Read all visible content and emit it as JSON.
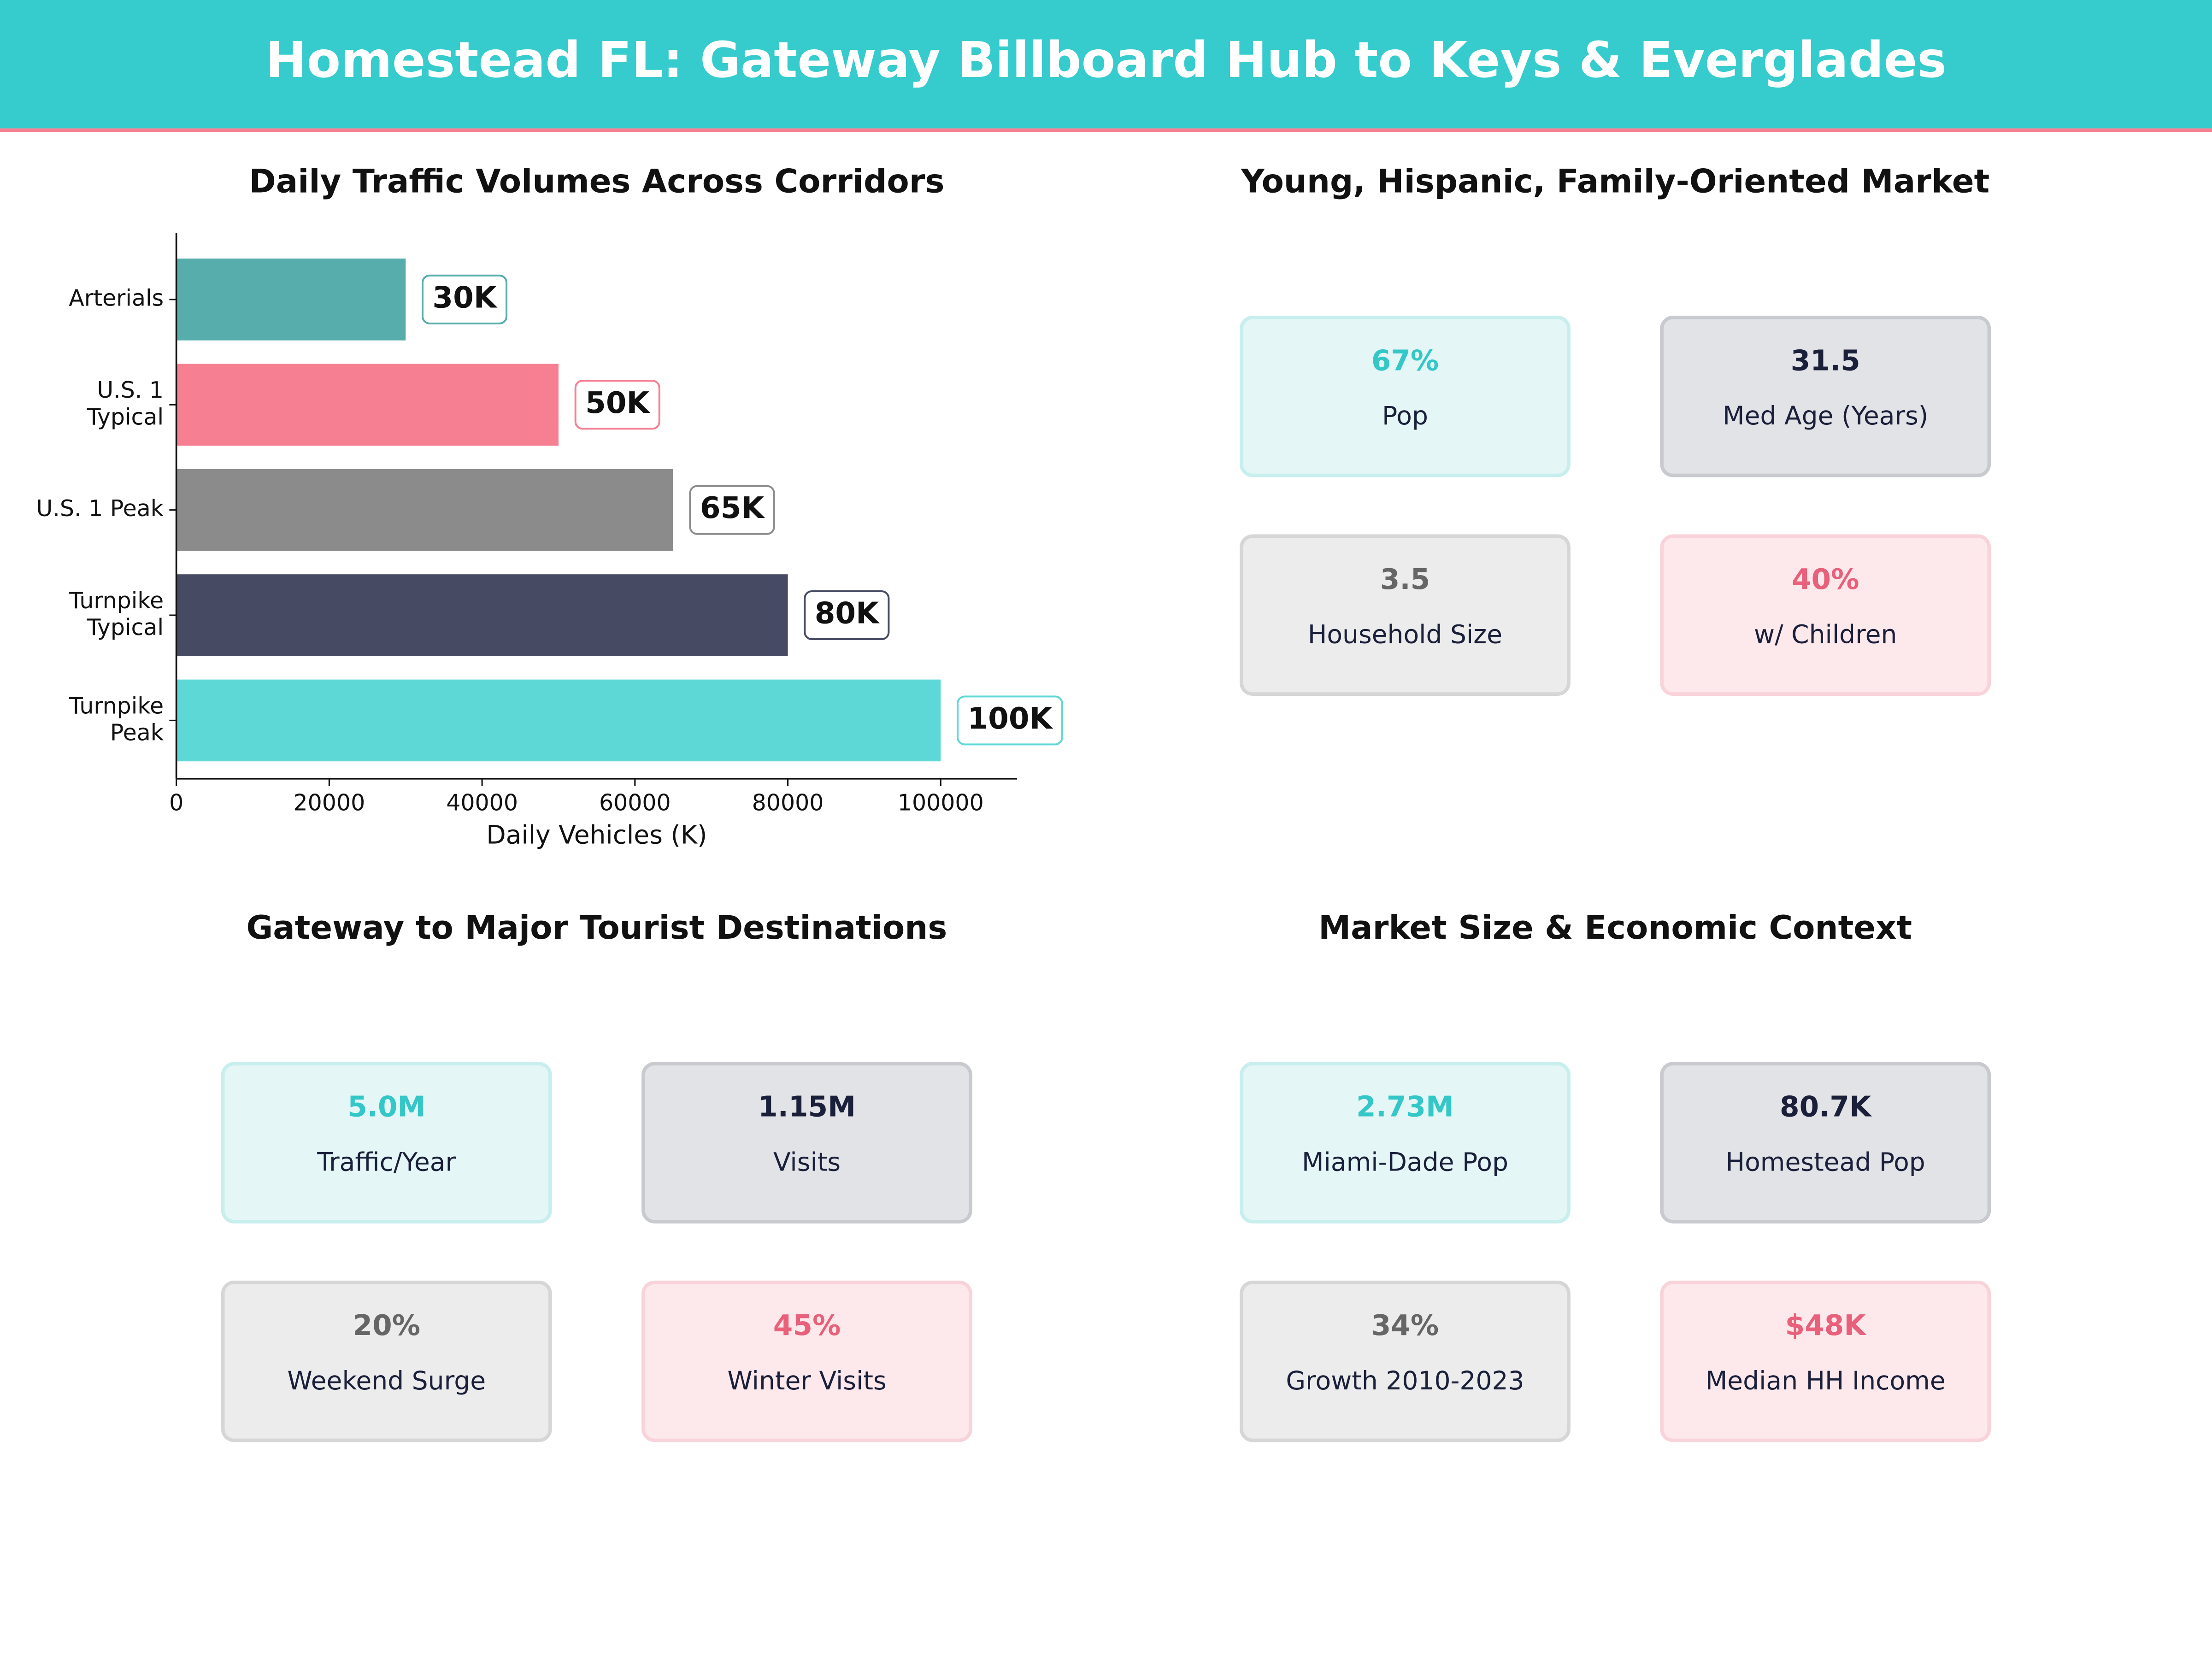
{
  "header": {
    "title": "Homestead FL: Gateway Billboard Hub to Keys & Everglades"
  },
  "chart_data": {
    "type": "bar",
    "orientation": "horizontal",
    "title": "Daily Traffic Volumes Across Corridors",
    "x_label": "Daily Vehicles (K)",
    "categories": [
      "Arterials",
      "U.S. 1\nTypical",
      "U.S. 1 Peak",
      "Turnpike\nTypical",
      "Turnpike\nPeak"
    ],
    "values": [
      30000,
      50000,
      65000,
      80000,
      100000
    ],
    "value_labels": [
      "30K",
      "50K",
      "65K",
      "80K",
      "100K"
    ],
    "colors": [
      "#56adac",
      "#f67f92",
      "#8b8b8b",
      "#464a62",
      "#5dd8d6"
    ],
    "label_border_colors": [
      "#56adac",
      "#f67f92",
      "#8b8b8b",
      "#464a62",
      "#5dd8d6"
    ],
    "xlim": [
      0,
      110000
    ],
    "xticks": [
      0,
      20000,
      40000,
      60000,
      80000,
      100000
    ]
  },
  "panels": [
    {
      "title": "Young, Hispanic, Family-Oriented Market",
      "cards": [
        {
          "value": "67%",
          "label": "Pop"
        },
        {
          "value": "31.5",
          "label": "Med Age (Years)"
        },
        {
          "value": "3.5",
          "label": "Household Size"
        },
        {
          "value": "40%",
          "label": "w/ Children"
        }
      ]
    },
    {
      "title": "Gateway to Major Tourist Destinations",
      "cards": [
        {
          "value": "5.0M",
          "label": "Traffic/Year"
        },
        {
          "value": "1.15M",
          "label": "Visits"
        },
        {
          "value": "20%",
          "label": "Weekend Surge"
        },
        {
          "value": "45%",
          "label": "Winter Visits"
        }
      ]
    },
    {
      "title": "Market Size & Economic Context",
      "cards": [
        {
          "value": "2.73M",
          "label": "Miami-Dade Pop"
        },
        {
          "value": "80.7K",
          "label": "Homestead Pop"
        },
        {
          "value": "34%",
          "label": "Growth 2010-2023"
        },
        {
          "value": "$48K",
          "label": "Median HH Income"
        }
      ]
    }
  ]
}
